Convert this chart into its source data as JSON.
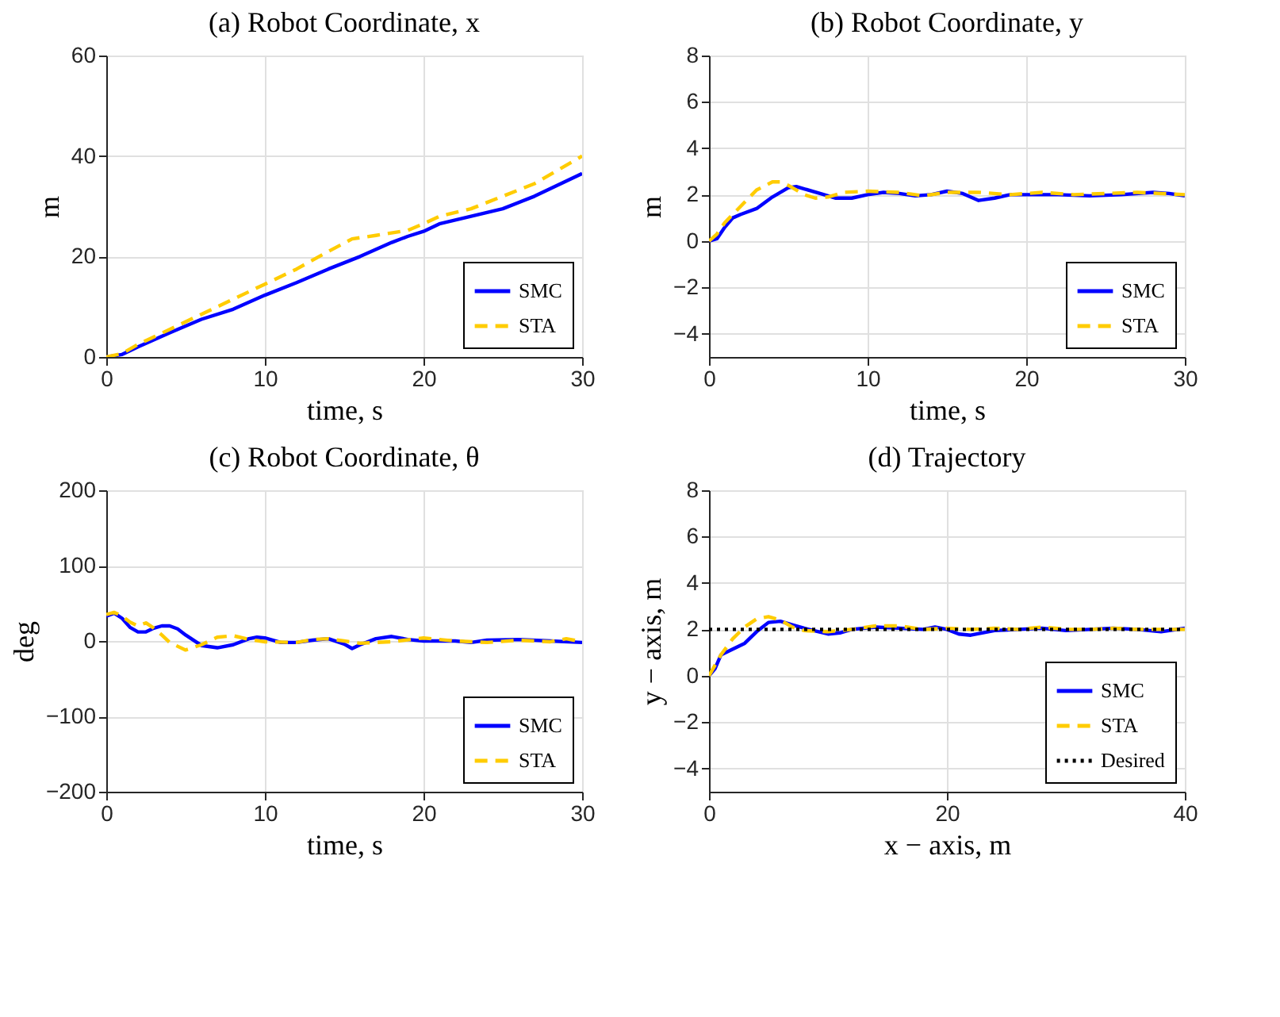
{
  "chart_data": [
    {
      "type": "line",
      "title": "(a) Robot Coordinate, x",
      "xlabel": "time, s",
      "ylabel": "m",
      "xlim": [
        0,
        30
      ],
      "xticks": [
        0,
        10,
        20,
        30
      ],
      "ylim": [
        0,
        60
      ],
      "yticks": [
        0,
        20,
        40,
        60
      ],
      "grid": true,
      "legend": "bottom right",
      "series": [
        {
          "name": "SMC",
          "color": "#0000ff",
          "line_style": "solid",
          "x": [
            0,
            1,
            2,
            4,
            6,
            8,
            10,
            12,
            14,
            16,
            18,
            19,
            20,
            21,
            23,
            25,
            27,
            30
          ],
          "values": [
            0,
            0.5,
            2,
            4.8,
            7.5,
            9.5,
            12.3,
            14.8,
            17.5,
            20,
            22.8,
            24,
            25,
            26.5,
            28,
            29.5,
            32,
            36.5
          ]
        },
        {
          "name": "STA",
          "color": "#ffcc00",
          "line_style": "dashed",
          "x": [
            0,
            1,
            2,
            4,
            6,
            8,
            10,
            12,
            14,
            15.5,
            17,
            19,
            20,
            21,
            23,
            25,
            27,
            30
          ],
          "values": [
            0,
            0.7,
            2.5,
            5.5,
            8.5,
            11.5,
            14.5,
            17.5,
            21,
            23.5,
            24.2,
            25.2,
            26.5,
            28,
            29.5,
            32,
            34.5,
            40
          ]
        }
      ]
    },
    {
      "type": "line",
      "title": "(b) Robot Coordinate, y",
      "xlabel": "time, s",
      "ylabel": "m",
      "xlim": [
        0,
        30
      ],
      "xticks": [
        0,
        10,
        20,
        30
      ],
      "ylim": [
        -5,
        8
      ],
      "yticks": [
        -4,
        -2,
        0,
        2,
        4,
        6,
        8
      ],
      "grid": true,
      "legend": "bottom right",
      "series": [
        {
          "name": "SMC",
          "color": "#0000ff",
          "line_style": "solid",
          "x": [
            0,
            0.5,
            1,
            1.5,
            2,
            3,
            4,
            5,
            5.5,
            6,
            7,
            8,
            9,
            10,
            11,
            12,
            13,
            14,
            15,
            16,
            17,
            18,
            19,
            20,
            22,
            24,
            26,
            28,
            29,
            30
          ],
          "values": [
            0,
            0.1,
            0.6,
            1,
            1.15,
            1.4,
            1.9,
            2.3,
            2.35,
            2.25,
            2.05,
            1.85,
            1.85,
            2.0,
            2.1,
            2.05,
            1.95,
            2.0,
            2.15,
            2.05,
            1.75,
            1.85,
            2.0,
            2.0,
            2.0,
            1.95,
            2.0,
            2.1,
            2.05,
            1.95
          ]
        },
        {
          "name": "STA",
          "color": "#ffcc00",
          "line_style": "dashed",
          "x": [
            0,
            0.5,
            1,
            2,
            3,
            4,
            4.5,
            5,
            6,
            6.7,
            7.5,
            8.5,
            10,
            12,
            13.5,
            15,
            17,
            19,
            21,
            23,
            25,
            27,
            30
          ],
          "values": [
            0,
            0.3,
            0.8,
            1.5,
            2.2,
            2.55,
            2.55,
            2.4,
            2.0,
            1.85,
            1.9,
            2.1,
            2.15,
            2.1,
            1.95,
            2.1,
            2.1,
            2.0,
            2.1,
            2.0,
            2.05,
            2.1,
            2.0
          ]
        }
      ]
    },
    {
      "type": "line",
      "title": "(c) Robot Coordinate, θ",
      "xlabel": "time, s",
      "ylabel": "deg",
      "xlim": [
        0,
        30
      ],
      "xticks": [
        0,
        10,
        20,
        30
      ],
      "ylim": [
        -200,
        200
      ],
      "yticks": [
        -200,
        -100,
        0,
        100,
        200
      ],
      "grid": true,
      "legend": "bottom right",
      "series": [
        {
          "name": "SMC",
          "color": "#0000ff",
          "line_style": "solid",
          "x": [
            0,
            0.5,
            1,
            1.5,
            2,
            2.5,
            3,
            3.5,
            4,
            4.5,
            5,
            6,
            7,
            8,
            9,
            9.5,
            10,
            11,
            12,
            13,
            14,
            15,
            15.5,
            16,
            17,
            18,
            19,
            20,
            22,
            23,
            24,
            26,
            28,
            30
          ],
          "values": [
            33,
            37,
            30,
            18,
            12,
            12,
            17,
            20,
            20,
            16,
            8,
            -6,
            -9,
            -5,
            3,
            5,
            4,
            -2,
            -2,
            1,
            3,
            -4,
            -10,
            -5,
            3,
            6,
            2,
            0,
            0,
            -2,
            1,
            2,
            0,
            -2
          ]
        },
        {
          "name": "STA",
          "color": "#ffcc00",
          "line_style": "dashed",
          "x": [
            0,
            0.5,
            1,
            1.5,
            2,
            2.5,
            3,
            3.5,
            4,
            5,
            6,
            7,
            8,
            9,
            10,
            12,
            13,
            14,
            15,
            16,
            17,
            18,
            20,
            22,
            24,
            26,
            28,
            29,
            30
          ],
          "values": [
            35,
            38,
            33,
            25,
            20,
            24,
            17,
            8,
            -2,
            -12,
            -5,
            5,
            7,
            2,
            -1,
            -2,
            2,
            3,
            0,
            -3,
            -2,
            -1,
            4,
            0,
            -2,
            1,
            -1,
            3,
            -1
          ]
        }
      ]
    },
    {
      "type": "line",
      "title": "(d) Trajectory",
      "xlabel": "x − axis, m",
      "ylabel": "y − axis, m",
      "xlim": [
        0,
        40
      ],
      "xticks": [
        0,
        20,
        40
      ],
      "ylim": [
        -5,
        8
      ],
      "yticks": [
        -4,
        -2,
        0,
        2,
        4,
        6,
        8
      ],
      "grid": true,
      "legend": "bottom right",
      "series": [
        {
          "name": "SMC",
          "color": "#0000ff",
          "line_style": "solid",
          "x": [
            0,
            0.5,
            1,
            2,
            3,
            4,
            5,
            6,
            7,
            8,
            10,
            11,
            12,
            14,
            16,
            18,
            19,
            20,
            21,
            22,
            24,
            26,
            28,
            30,
            32,
            34,
            36,
            38,
            40
          ],
          "values": [
            0,
            0.3,
            0.9,
            1.15,
            1.4,
            1.9,
            2.3,
            2.35,
            2.2,
            2.05,
            1.8,
            1.85,
            2.0,
            2.1,
            2.05,
            2.0,
            2.1,
            2.0,
            1.8,
            1.75,
            1.95,
            2.0,
            2.05,
            1.95,
            2.0,
            2.05,
            2.0,
            1.9,
            2.05
          ]
        },
        {
          "name": "STA",
          "color": "#ffcc00",
          "line_style": "dashed",
          "x": [
            0,
            1,
            2,
            3,
            4,
            5,
            6,
            7,
            8,
            10,
            12,
            14,
            16,
            18,
            20,
            22,
            24,
            26,
            28,
            30,
            32,
            34,
            36,
            38,
            40
          ],
          "values": [
            0,
            0.9,
            1.6,
            2.1,
            2.45,
            2.55,
            2.4,
            2.1,
            1.95,
            1.9,
            2.0,
            2.15,
            2.15,
            2.0,
            2.05,
            2.0,
            2.05,
            2.0,
            2.1,
            2.0,
            2.0,
            2.05,
            2.0,
            2.0,
            2.0
          ]
        },
        {
          "name": "Desired",
          "color": "#000000",
          "line_style": "dotted",
          "x": [
            0,
            40
          ],
          "values": [
            2,
            2
          ]
        }
      ]
    }
  ]
}
